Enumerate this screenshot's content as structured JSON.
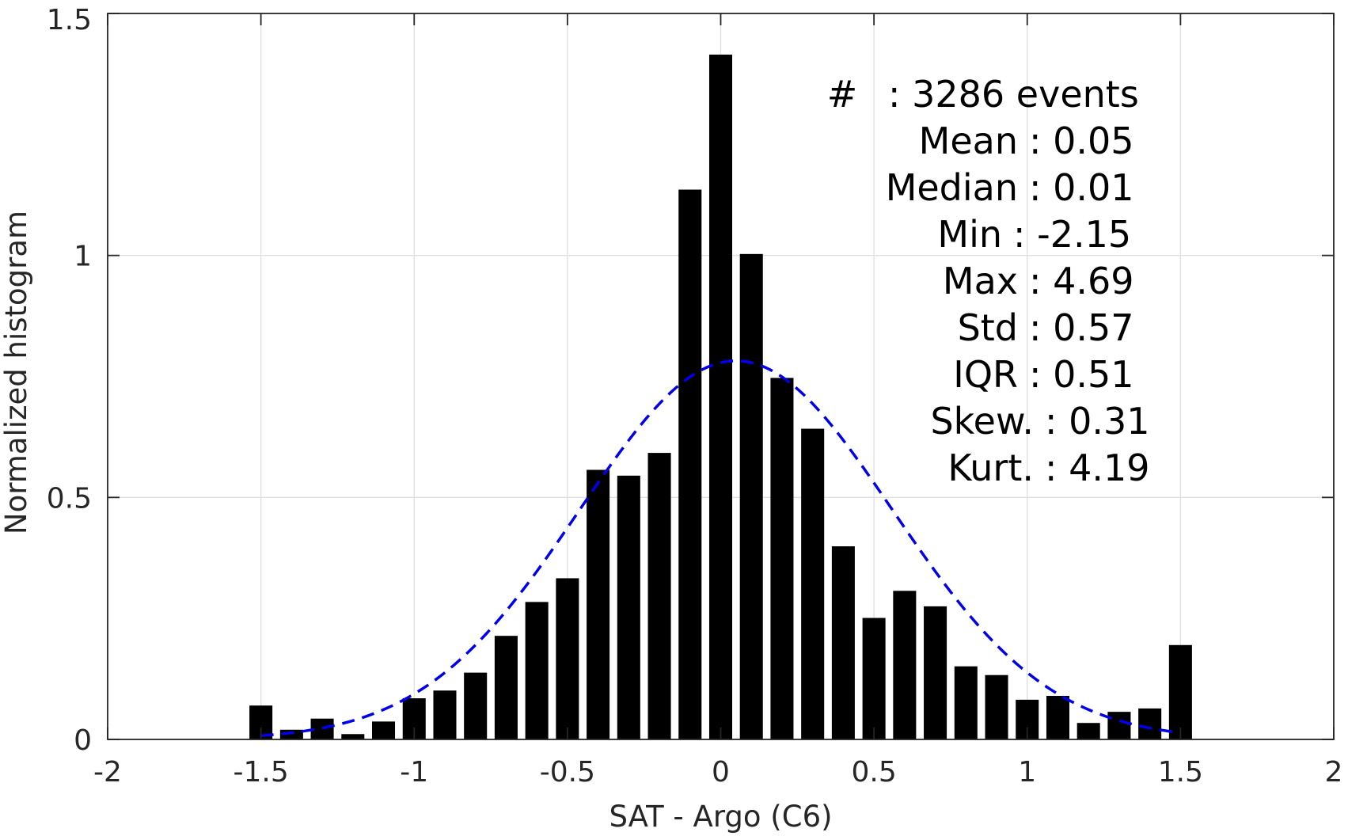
{
  "chart_data": {
    "type": "bar",
    "xlabel": "SAT - Argo (C6)",
    "ylabel": "Normalized histogram",
    "xlim": [
      -2,
      2
    ],
    "ylim": [
      0,
      1.5
    ],
    "grid": true,
    "xticks": [
      -2,
      -1.5,
      -1,
      -0.5,
      0,
      0.5,
      1,
      1.5,
      2
    ],
    "xtick_labels": [
      "-2",
      "-1.5",
      "-1",
      "-0.5",
      "0",
      "0.5",
      "1",
      "1.5",
      "2"
    ],
    "yticks": [
      0,
      0.5,
      1,
      1.5
    ],
    "ytick_labels": [
      "0",
      "0.5",
      "1",
      "1.5"
    ],
    "bar_width": 0.075,
    "bar_color": "#000000",
    "bins": [
      {
        "x": -1.5,
        "value": 0.07
      },
      {
        "x": -1.4,
        "value": 0.02
      },
      {
        "x": -1.3,
        "value": 0.043
      },
      {
        "x": -1.2,
        "value": 0.011
      },
      {
        "x": -1.1,
        "value": 0.037
      },
      {
        "x": -1.0,
        "value": 0.085
      },
      {
        "x": -0.9,
        "value": 0.101
      },
      {
        "x": -0.8,
        "value": 0.138
      },
      {
        "x": -0.7,
        "value": 0.214
      },
      {
        "x": -0.6,
        "value": 0.284
      },
      {
        "x": -0.5,
        "value": 0.333
      },
      {
        "x": -0.4,
        "value": 0.557
      },
      {
        "x": -0.3,
        "value": 0.545
      },
      {
        "x": -0.2,
        "value": 0.592
      },
      {
        "x": -0.1,
        "value": 1.136
      },
      {
        "x": 0.0,
        "value": 1.415
      },
      {
        "x": 0.1,
        "value": 1.003
      },
      {
        "x": 0.2,
        "value": 0.747
      },
      {
        "x": 0.3,
        "value": 0.642
      },
      {
        "x": 0.4,
        "value": 0.399
      },
      {
        "x": 0.5,
        "value": 0.251
      },
      {
        "x": 0.6,
        "value": 0.307
      },
      {
        "x": 0.7,
        "value": 0.275
      },
      {
        "x": 0.8,
        "value": 0.151
      },
      {
        "x": 0.9,
        "value": 0.133
      },
      {
        "x": 1.0,
        "value": 0.082
      },
      {
        "x": 1.1,
        "value": 0.09
      },
      {
        "x": 1.2,
        "value": 0.034
      },
      {
        "x": 1.3,
        "value": 0.057
      },
      {
        "x": 1.4,
        "value": 0.064
      },
      {
        "x": 1.5,
        "value": 0.195
      }
    ],
    "fit_curve": {
      "style": "dashed",
      "color": "#0000ee",
      "mean": 0.05,
      "std": 0.51,
      "x_range": [
        -1.5,
        1.5
      ]
    },
    "stats": [
      {
        "label": "#",
        "value": ": 3286 events"
      },
      {
        "label": "Mean",
        "value": ": 0.05"
      },
      {
        "label": "Median",
        "value": ": 0.01"
      },
      {
        "label": "Min",
        "value": ": -2.15"
      },
      {
        "label": "Max",
        "value": ": 4.69"
      },
      {
        "label": "Std",
        "value": ": 0.57"
      },
      {
        "label": "IQR",
        "value": ": 0.51"
      },
      {
        "label": "Skew.",
        "value": ": 0.31"
      },
      {
        "label": "Kurt.",
        "value": ": 4.19"
      }
    ]
  }
}
